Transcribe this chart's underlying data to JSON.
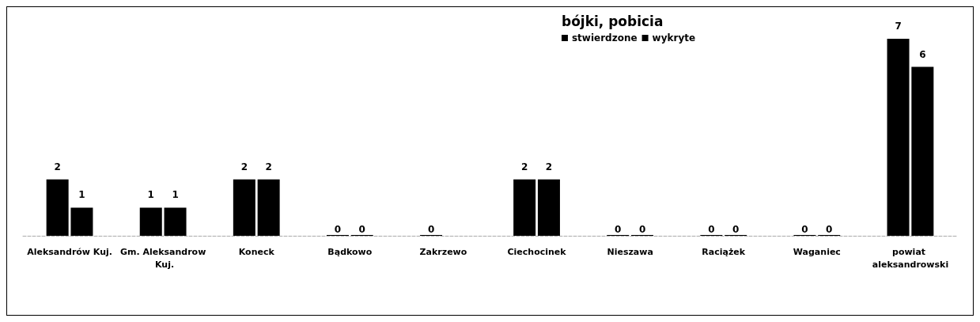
{
  "chart_data": {
    "type": "bar",
    "title": "bójki, pobicia",
    "categories": [
      "Aleksandrów Kuj.",
      "Gm. Aleksandrow Kuj.",
      "Koneck",
      "Bądkowo",
      "Zakrzewo",
      "Ciechocinek",
      "Nieszawa",
      "Raciążek",
      "Waganiec",
      "powiat aleksandrowski"
    ],
    "series": [
      {
        "name": "stwierdzone",
        "color": "#000000",
        "values": [
          2,
          1,
          2,
          0,
          0,
          2,
          0,
          0,
          0,
          7
        ]
      },
      {
        "name": "wykryte",
        "color": "#000000",
        "values": [
          1,
          1,
          2,
          0,
          null,
          2,
          0,
          0,
          0,
          6
        ]
      }
    ],
    "data_labels": true,
    "legend": "top right",
    "tick_labels": "x",
    "grid": false
  }
}
